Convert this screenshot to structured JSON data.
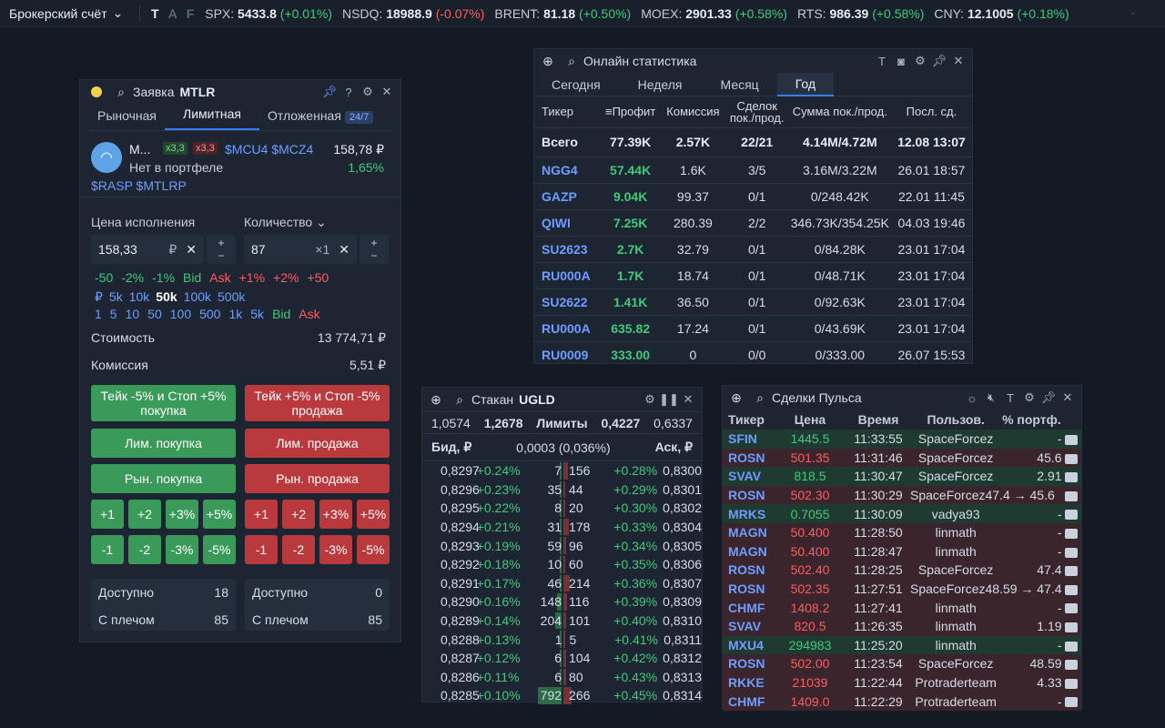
{
  "topbar": {
    "account": "Брокерский счёт",
    "fmt": [
      "T",
      "A",
      "F"
    ],
    "tickers": [
      {
        "name": "SPX:",
        "value": "5433.8",
        "change": "(+0.01%)",
        "dir": "pos"
      },
      {
        "name": "NSDQ:",
        "value": "18988.9",
        "change": "(-0.07%)",
        "dir": "neg"
      },
      {
        "name": "BRENT:",
        "value": "81.18",
        "change": "(+0.50%)",
        "dir": "pos"
      },
      {
        "name": "MOEX:",
        "value": "2901.33",
        "change": "(+0.58%)",
        "dir": "pos"
      },
      {
        "name": "RTS:",
        "value": "986.39",
        "change": "(+0.58%)",
        "dir": "pos"
      },
      {
        "name": "CNY:",
        "value": "12.1005",
        "change": "(+0.18%)",
        "dir": "pos"
      }
    ]
  },
  "order": {
    "title": "Заявка",
    "ticker": "MTLR",
    "tabs": [
      "Рыночная",
      "Лимитная",
      "Отложенная"
    ],
    "badge": "24/7",
    "sec_short": "М...",
    "lev_long": "x3,3",
    "lev_short": "x3,3",
    "futs": "$MCU4 $MCZ4",
    "price": "158,78 ₽",
    "portfolio": "Нет в портфеле",
    "change": "1,65%",
    "links": "$RASP $MTLRP",
    "price_label": "Цена исполнения",
    "qty_label": "Количество",
    "price_value": "158,33",
    "price_unit": "₽",
    "qty_value": "87",
    "qty_unit": "×1",
    "quick1": [
      "-50",
      "-2%",
      "-1%",
      "Bid",
      "Ask",
      "+1%",
      "+2%",
      "+50"
    ],
    "quick2": [
      "₽",
      "5k",
      "10k",
      "50k",
      "100k",
      "500k"
    ],
    "quick3": [
      "1",
      "5",
      "10",
      "50",
      "100",
      "500",
      "1k",
      "5k",
      "Bid",
      "Ask"
    ],
    "cost_label": "Стоимость",
    "cost": "13 774,71 ₽",
    "fee_label": "Комиссия",
    "fee": "5,51 ₽",
    "tp_buy": "Тейк -5% и Стоп +5% покупка",
    "tp_sell": "Тейк +5% и Стоп -5% продажа",
    "lim_buy": "Лим. покупка",
    "lim_sell": "Лим. продажа",
    "mkt_buy": "Рын. покупка",
    "mkt_sell": "Рын. продажа",
    "plus": [
      "+1",
      "+2",
      "+3%",
      "+5%"
    ],
    "minus": [
      "-1",
      "-2",
      "-3%",
      "-5%"
    ],
    "avail_label": "Доступно",
    "margin_label": "С плечом",
    "buy_avail": "18",
    "buy_margin": "85",
    "sell_avail": "0",
    "sell_margin": "85"
  },
  "stats": {
    "title": "Онлайн статистика",
    "tabs": [
      "Сегодня",
      "Неделя",
      "Месяц",
      "Год"
    ],
    "cols": [
      "Тикер",
      "Профит",
      "Комиссия",
      "Сделок пок./прод.",
      "Сумма пок./прод.",
      "Посл. сд."
    ],
    "total": [
      "Всего",
      "77.39K",
      "2.57K",
      "22/21",
      "4.14M/4.72M",
      "12.08 13:07"
    ],
    "rows": [
      [
        "NGG4",
        "57.44K",
        "1.6K",
        "3/5",
        "3.16M/3.22M",
        "26.01 18:57"
      ],
      [
        "GAZP",
        "9.04K",
        "99.37",
        "0/1",
        "0/248.42K",
        "22.01 11:45"
      ],
      [
        "QIWI",
        "7.25K",
        "280.39",
        "2/2",
        "346.73K/354.25K",
        "04.03 19:46"
      ],
      [
        "SU2623",
        "2.7K",
        "32.79",
        "0/1",
        "0/84.28K",
        "23.01 17:04"
      ],
      [
        "RU000A",
        "1.7K",
        "18.74",
        "0/1",
        "0/48.71K",
        "23.01 17:04"
      ],
      [
        "SU2622",
        "1.41K",
        "36.50",
        "0/1",
        "0/92.63K",
        "23.01 17:04"
      ],
      [
        "RU000A",
        "635.82",
        "17.24",
        "0/1",
        "0/43.69K",
        "23.01 17:04"
      ],
      [
        "RU0009",
        "333.00",
        "0",
        "0/0",
        "0/333.00",
        "26.07 15:53"
      ]
    ]
  },
  "book": {
    "title": "Стакан",
    "ticker": "UGLD",
    "top": [
      "1,0574",
      "1,2678",
      "Лимиты",
      "0,4227",
      "0,6337"
    ],
    "bid_label": "Бид, ₽",
    "spread": "0,0003 (0,036%)",
    "ask_label": "Аск, ₽",
    "rows": [
      [
        "0,8297",
        "+0.24%",
        "7",
        "156",
        "+0.28%",
        "0,8300"
      ],
      [
        "0,8296",
        "+0.23%",
        "35",
        "44",
        "+0.29%",
        "0,8301"
      ],
      [
        "0,8295",
        "+0.22%",
        "8",
        "20",
        "+0.30%",
        "0,8302"
      ],
      [
        "0,8294",
        "+0.21%",
        "31",
        "178",
        "+0.33%",
        "0,8304"
      ],
      [
        "0,8293",
        "+0.19%",
        "59",
        "96",
        "+0.34%",
        "0,8305"
      ],
      [
        "0,8292",
        "+0.18%",
        "10",
        "60",
        "+0.35%",
        "0,8306"
      ],
      [
        "0,8291",
        "+0.17%",
        "46",
        "214",
        "+0.36%",
        "0,8307"
      ],
      [
        "0,8290",
        "+0.16%",
        "148",
        "116",
        "+0.39%",
        "0,8309"
      ],
      [
        "0,8289",
        "+0.14%",
        "204",
        "101",
        "+0.40%",
        "0,8310"
      ],
      [
        "0,8288",
        "+0.13%",
        "1",
        "5",
        "+0.41%",
        "0,8311"
      ],
      [
        "0,8287",
        "+0.12%",
        "6",
        "104",
        "+0.42%",
        "0,8312"
      ],
      [
        "0,8286",
        "+0.11%",
        "6",
        "80",
        "+0.43%",
        "0,8313"
      ],
      [
        "0,8285",
        "+0.10%",
        "792",
        "266",
        "+0.45%",
        "0,8314"
      ]
    ]
  },
  "trades": {
    "title": "Сделки Пульса",
    "cols": [
      "Тикер",
      "Цена",
      "Время",
      "Пользов.",
      "% портф."
    ],
    "rows": [
      [
        "SFIN",
        "1445.5",
        "11:33:55",
        "SpaceForcez",
        "-",
        "buy"
      ],
      [
        "ROSN",
        "501.35",
        "11:31:46",
        "SpaceForcez",
        "45.6",
        "sell"
      ],
      [
        "SVAV",
        "818.5",
        "11:30:47",
        "SpaceForcez",
        "2.91",
        "buy"
      ],
      [
        "ROSN",
        "502.30",
        "11:30:29",
        "SpaceForcez47.4 → 45.6",
        "",
        "sell"
      ],
      [
        "MRKS",
        "0.7055",
        "11:30:09",
        "vadya93",
        "-",
        "buy"
      ],
      [
        "MAGN",
        "50.400",
        "11:28:50",
        "linmath",
        "-",
        "sell"
      ],
      [
        "MAGN",
        "50.400",
        "11:28:47",
        "linmath",
        "-",
        "sell"
      ],
      [
        "ROSN",
        "502.40",
        "11:28:25",
        "SpaceForcez",
        "47.4",
        "sell"
      ],
      [
        "ROSN",
        "502.35",
        "11:27:51",
        "SpaceForcez48.59 → 47.4",
        "",
        "sell"
      ],
      [
        "CHMF",
        "1408.2",
        "11:27:41",
        "linmath",
        "-",
        "sell"
      ],
      [
        "SVAV",
        "820.5",
        "11:26:35",
        "linmath",
        "1.19",
        "sell"
      ],
      [
        "MXU4",
        "294983",
        "11:25:20",
        "linmath",
        "-",
        "buy"
      ],
      [
        "ROSN",
        "502.00",
        "11:23:54",
        "SpaceForcez",
        "48.59",
        "sell"
      ],
      [
        "RKKE",
        "21039",
        "11:22:44",
        "Protraderteam",
        "4.33",
        "sell"
      ],
      [
        "CHMF",
        "1409.0",
        "11:22:29",
        "Protraderteam",
        "-",
        "sell"
      ]
    ]
  }
}
